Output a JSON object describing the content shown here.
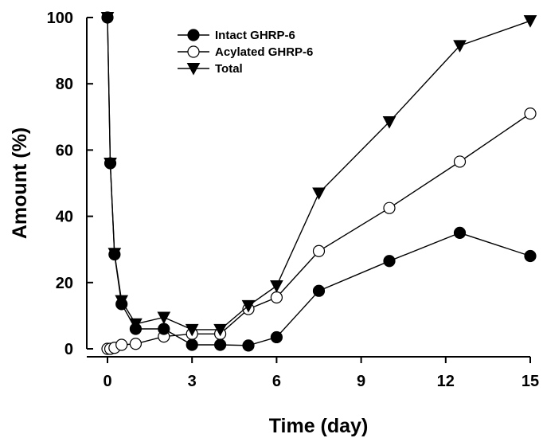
{
  "chart_data": {
    "type": "line",
    "xlabel": "Time (day)",
    "ylabel": "Amount (%)",
    "xlim": [
      0,
      15
    ],
    "ylim": [
      0,
      100
    ],
    "xticks": [
      0,
      3,
      6,
      9,
      12,
      15
    ],
    "yticks": [
      0,
      20,
      40,
      60,
      80,
      100
    ],
    "grid": false,
    "legend_position": "top-center",
    "series": [
      {
        "name": "Intact GHRP-6",
        "marker": "filled-circle",
        "color": "#000000",
        "x": [
          0,
          0.1,
          0.25,
          0.5,
          1,
          2,
          3,
          4,
          5,
          6,
          7.5,
          10,
          12.5,
          15
        ],
        "y": [
          100,
          56,
          28.5,
          13.5,
          6,
          6,
          1.2,
          1.2,
          1,
          3.5,
          17.5,
          26.5,
          35,
          28
        ]
      },
      {
        "name": "Acylated GHRP-6",
        "marker": "open-circle",
        "color": "#000000",
        "x": [
          0,
          0.1,
          0.25,
          0.5,
          1,
          2,
          3,
          4,
          5,
          6,
          7.5,
          10,
          12.5,
          15
        ],
        "y": [
          0,
          0,
          0.3,
          1.2,
          1.5,
          3.7,
          4.5,
          4.5,
          12,
          15.5,
          29.5,
          42.5,
          56.5,
          71
        ]
      },
      {
        "name": "Total",
        "marker": "filled-triangle-down",
        "color": "#000000",
        "x": [
          0,
          0.1,
          0.25,
          0.5,
          1,
          2,
          3,
          4,
          5,
          6,
          7.5,
          10,
          12.5,
          15
        ],
        "y": [
          100,
          56,
          28.8,
          14.5,
          7.5,
          9.5,
          5.8,
          5.8,
          13,
          19,
          47,
          68.5,
          91.5,
          99
        ]
      }
    ]
  }
}
